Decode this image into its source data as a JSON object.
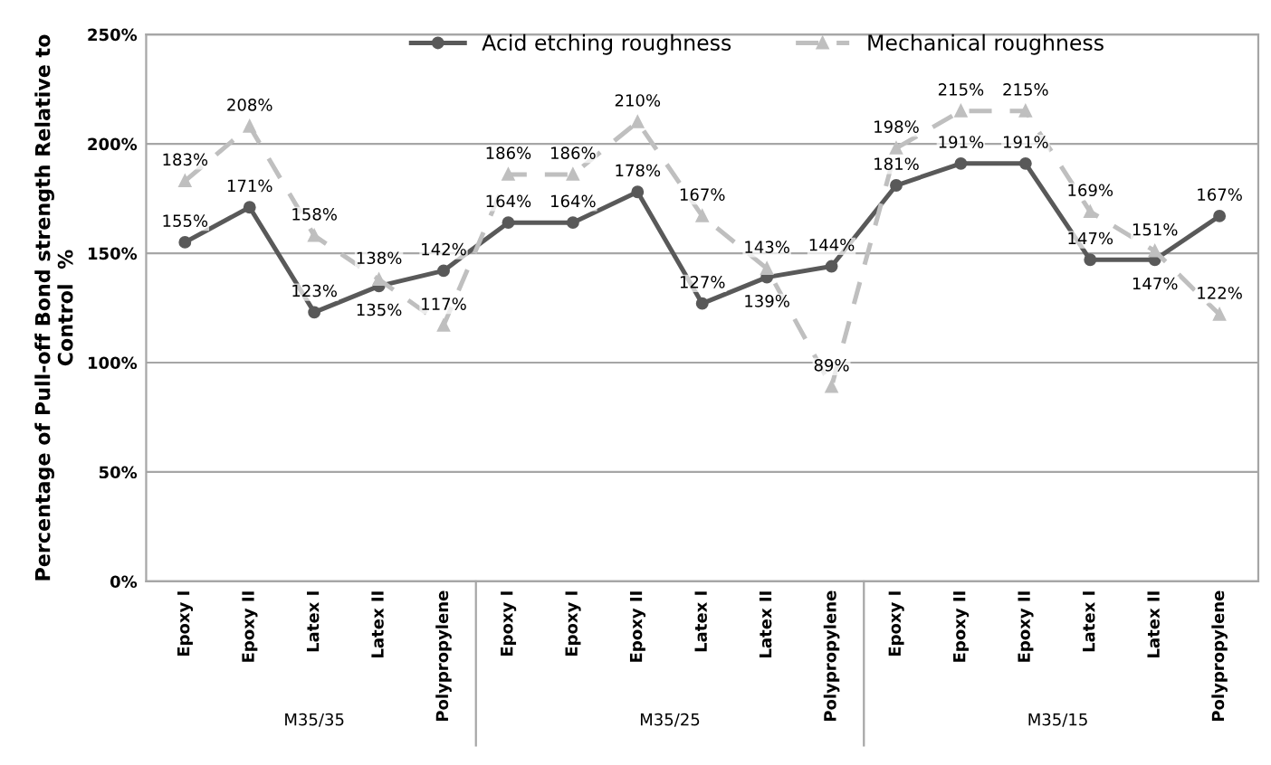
{
  "chart_data": {
    "type": "line",
    "ylabel": "Percentage of Pull-off Bond strength Relative to\nControl  %",
    "categories": [
      "Epoxy I",
      "Epoxy II",
      "Latex I",
      "Latex II",
      "Polypropylene",
      "Epoxy I",
      "Epoxy I",
      "Epoxy II",
      "Latex I",
      "Latex II",
      "Polypropylene",
      "Epoxy I",
      "Epoxy II",
      "Epoxy II",
      "Latex I",
      "Latex II",
      "Polypropylene"
    ],
    "series": [
      {
        "name": "Acid etching roughness",
        "color": "#595959",
        "marker": "circle",
        "line_style": "solid",
        "values": [
          155,
          171,
          123,
          135,
          142,
          164,
          164,
          178,
          127,
          139,
          144,
          181,
          191,
          191,
          147,
          147,
          167
        ],
        "value_labels": [
          "155%",
          "171%",
          "123%",
          "135%",
          "142%",
          "164%",
          "164%",
          "178%",
          "127%",
          "139%",
          "144%",
          "181%",
          "191%",
          "191%",
          "147%",
          "147%",
          "167%"
        ]
      },
      {
        "name": "Mechanical roughness",
        "color": "#bfbfbf",
        "marker": "triangle",
        "line_style": "dashed",
        "values": [
          183,
          208,
          158,
          138,
          117,
          186,
          186,
          210,
          167,
          143,
          89,
          198,
          215,
          215,
          169,
          151,
          122
        ],
        "value_labels": [
          "183%",
          "208%",
          "158%",
          "138%",
          "117%",
          "186%",
          "186%",
          "210%",
          "167%",
          "143%",
          "89%",
          "198%",
          "215%",
          "215%",
          "169%",
          "151%",
          "122%"
        ]
      }
    ],
    "ylim": [
      0,
      250
    ],
    "yticks": [
      {
        "value": 0,
        "label": "0%"
      },
      {
        "value": 50,
        "label": "50%"
      },
      {
        "value": 100,
        "label": "100%"
      },
      {
        "value": 150,
        "label": "150%"
      },
      {
        "value": 200,
        "label": "200%"
      },
      {
        "value": 250,
        "label": "250%"
      }
    ],
    "grid": "y",
    "legend": "top",
    "annotations": [
      "M35/35",
      "M35/25",
      "M35/15"
    ]
  }
}
